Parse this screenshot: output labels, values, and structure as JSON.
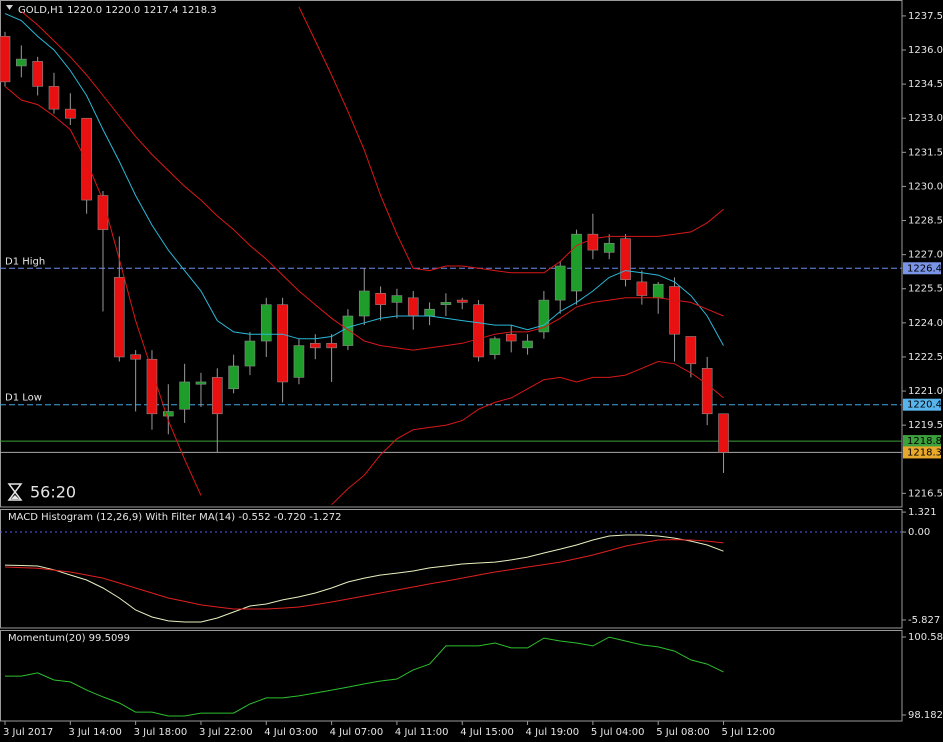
{
  "chart_data": [
    {
      "type": "candlestick",
      "title": "GOLD,H1  1220.0 1220.0 1217.4 1218.3",
      "timer": "56:20",
      "categories": [
        "3 Jul 2017",
        null,
        null,
        null,
        "3 Jul 14:00",
        null,
        null,
        null,
        "3 Jul 18:00",
        null,
        null,
        null,
        "3 Jul 22:00",
        null,
        null,
        null,
        "4 Jul 03:00",
        null,
        null,
        null,
        "4 Jul 07:00",
        null,
        null,
        null,
        "4 Jul 11:00",
        null,
        null,
        null,
        "4 Jul 15:00",
        null,
        null,
        null,
        "4 Jul 19:00",
        null,
        null,
        null,
        "5 Jul 04:00",
        null,
        null,
        null,
        "5 Jul 08:00",
        null,
        null,
        null,
        "5 Jul 12:00"
      ],
      "open": [
        1236.6,
        1235.3,
        1235.5,
        1234.4,
        1233.4,
        1233.0,
        1229.6,
        1226.0,
        1222.6,
        1222.4,
        1219.9,
        1220.2,
        1221.3,
        1221.6,
        1221.1,
        1222.1,
        1223.2,
        1224.8,
        1221.6,
        1223.1,
        1223.1,
        1223.0,
        1224.3,
        1225.3,
        1224.9,
        1225.1,
        1224.3,
        1224.8,
        1225.0,
        1224.8,
        1222.6,
        1223.5,
        1222.9,
        1223.6,
        1225.0,
        1225.4,
        1227.9,
        1227.1,
        1227.7,
        1225.8,
        1225.1,
        1225.6,
        1223.4,
        1222.0,
        1220.0
      ],
      "high": [
        1236.8,
        1236.2,
        1235.7,
        1235.0,
        1234.1,
        1233.0,
        1229.8,
        1227.8,
        1222.8,
        1222.8,
        1221.3,
        1222.2,
        1221.8,
        1222.0,
        1222.6,
        1223.6,
        1225.1,
        1225.1,
        1223.3,
        1223.5,
        1223.5,
        1224.6,
        1226.4,
        1225.6,
        1225.5,
        1225.4,
        1224.9,
        1225.3,
        1225.1,
        1225.0,
        1223.4,
        1223.9,
        1223.5,
        1225.4,
        1226.7,
        1228.1,
        1228.8,
        1227.9,
        1227.9,
        1226.3,
        1225.8,
        1226.0,
        1223.4,
        1222.5,
        1220.0
      ],
      "low": [
        1234.4,
        1234.8,
        1234.0,
        1233.2,
        1232.7,
        1228.8,
        1224.5,
        1222.3,
        1220.1,
        1219.3,
        1219.1,
        1219.6,
        1220.3,
        1218.3,
        1220.9,
        1221.7,
        1222.5,
        1220.5,
        1221.3,
        1222.4,
        1221.4,
        1222.8,
        1223.9,
        1224.1,
        1224.2,
        1223.7,
        1223.9,
        1224.3,
        1224.6,
        1222.3,
        1222.4,
        1222.7,
        1222.6,
        1223.3,
        1224.4,
        1224.8,
        1226.8,
        1226.8,
        1225.6,
        1224.8,
        1224.4,
        1222.3,
        1221.6,
        1219.5,
        1217.4
      ],
      "close": [
        1234.6,
        1235.6,
        1234.4,
        1233.4,
        1233.0,
        1229.4,
        1228.1,
        1222.5,
        1222.4,
        1220.0,
        1220.1,
        1221.4,
        1221.4,
        1220.0,
        1222.1,
        1223.2,
        1224.8,
        1221.4,
        1223.0,
        1222.9,
        1222.9,
        1224.3,
        1225.4,
        1224.8,
        1225.2,
        1224.3,
        1224.6,
        1224.9,
        1224.9,
        1222.5,
        1223.3,
        1223.2,
        1223.2,
        1225.0,
        1226.5,
        1227.9,
        1227.2,
        1227.5,
        1225.9,
        1225.2,
        1225.7,
        1223.5,
        1222.2,
        1220.0,
        1218.3
      ],
      "up_color": "#1f9d2b",
      "down_color": "#e81010",
      "overlays": [
        {
          "color": "#2bb8d8",
          "values": [
            1237.6,
            1237.3,
            1236.6,
            1236.0,
            1235.1,
            1234.0,
            1232.5,
            1231.1,
            1229.6,
            1228.3,
            1227.2,
            1226.3,
            1225.4,
            1224.1,
            1223.6,
            1223.5,
            1223.5,
            1223.5,
            1223.3,
            1223.3,
            1223.4,
            1223.8,
            1224.0,
            1224.2,
            1224.3,
            1224.3,
            1224.3,
            1224.2,
            1224.1,
            1224.0,
            1223.9,
            1223.9,
            1223.7,
            1223.9,
            1224.5,
            1224.9,
            1225.4,
            1226.0,
            1226.3,
            1226.2,
            1226.1,
            1225.8,
            1225.2,
            1224.3,
            1223.0
          ]
        },
        {
          "color": "#d81818",
          "values": [
            null,
            null,
            null,
            null,
            null,
            null,
            null,
            null,
            null,
            null,
            null,
            null,
            null,
            null,
            null,
            null,
            null,
            null,
            1237.9,
            1236.4,
            1234.9,
            1233.3,
            1231.6,
            1229.6,
            1227.9,
            1226.4,
            1226.3,
            1226.5,
            1226.5,
            1226.4,
            1226.3,
            1226.2,
            1226.2,
            1226.2,
            1226.7,
            1227.4,
            1227.7,
            1227.8,
            1227.8,
            1227.8,
            1227.8,
            1227.9,
            1228.0,
            1228.4,
            1229.0
          ]
        },
        {
          "color": "#d81818",
          "values": [
            null,
            1237.7,
            1237.1,
            1236.4,
            1235.7,
            1234.9,
            1234.0,
            1233.1,
            1232.2,
            1231.4,
            1230.7,
            1230.0,
            1229.4,
            1228.7,
            1228.1,
            1227.4,
            1226.8,
            1226.1,
            1225.4,
            1224.8,
            1224.2,
            1223.7,
            1223.2,
            1223.0,
            1222.9,
            1222.8,
            1222.9,
            1223.0,
            1223.1,
            1223.3,
            1223.5,
            1223.6,
            1223.6,
            1223.8,
            1224.2,
            1224.7,
            1224.9,
            1225.0,
            1225.1,
            1225.1,
            1225.1,
            1225.0,
            1224.9,
            1224.6,
            1224.3
          ]
        },
        {
          "color": "#d81818",
          "values": [
            1234.4,
            1233.8,
            1233.6,
            1233.1,
            1232.5,
            1231.1,
            1229.4,
            1226.8,
            1224.1,
            1221.9,
            1219.7,
            1218.0,
            1216.4,
            null,
            null,
            null,
            null,
            null,
            null,
            null,
            1216.0,
            1216.7,
            1217.3,
            1218.2,
            1218.9,
            1219.3,
            1219.4,
            1219.5,
            1219.7,
            1220.2,
            1220.5,
            1220.7,
            1221.1,
            1221.5,
            1221.6,
            1221.4,
            1221.6,
            1221.6,
            1221.7,
            1222.0,
            1222.3,
            1222.2,
            1221.8,
            1221.3,
            1220.7
          ]
        }
      ],
      "levels": [
        {
          "label": "D1 High",
          "value": 1226.4,
          "color": "#6d8df0",
          "box_color": "#7a95e8",
          "style": "dashed"
        },
        {
          "label": "D1 Low",
          "value": 1220.4,
          "color": "#3fa6e0",
          "box_color": "#58b4ec",
          "style": "dashed"
        },
        {
          "value": 1218.8,
          "color": "#3ca03c",
          "box_color": "#3ca03c",
          "style": "solid"
        },
        {
          "value": 1218.3,
          "color": "#a8a8a8",
          "box_color": "#e8a82c",
          "style": "solid"
        }
      ],
      "ylim": [
        1215.9,
        1238.2
      ],
      "yticks": [
        {
          "value": 1237.5,
          "label": "1237.5"
        },
        {
          "value": 1236,
          "label": "1236.0"
        },
        {
          "value": 1234.5,
          "label": "1234.5"
        },
        {
          "value": 1233,
          "label": "1233.0"
        },
        {
          "value": 1231.5,
          "label": "1231.5"
        },
        {
          "value": 1230,
          "label": "1230.0"
        },
        {
          "value": 1228.5,
          "label": "1228.5"
        },
        {
          "value": 1227,
          "label": "1227.0"
        },
        {
          "value": 1225.5,
          "label": "1225.5"
        },
        {
          "value": 1224,
          "label": "1224.0"
        },
        {
          "value": 1222.5,
          "label": "1222.5"
        },
        {
          "value": 1221,
          "label": "1221.0"
        },
        {
          "value": 1219.5,
          "label": "1219.5"
        },
        {
          "value": 1216.5,
          "label": "1216.5"
        }
      ]
    },
    {
      "type": "line",
      "title": "MACD Histogram (12,26,9) With Filter MA(14) -0.552 -0.720 -1.272",
      "series": [
        {
          "color": "#e8f0c0",
          "values": [
            -2.19,
            -2.22,
            -2.25,
            -2.5,
            -2.85,
            -3.18,
            -3.71,
            -4.37,
            -5.17,
            -5.63,
            -5.89,
            -5.96,
            -5.96,
            -5.7,
            -5.3,
            -4.9,
            -4.77,
            -4.5,
            -4.3,
            -4.04,
            -3.71,
            -3.31,
            -3.05,
            -2.85,
            -2.72,
            -2.58,
            -2.38,
            -2.25,
            -2.12,
            -2.05,
            -1.99,
            -1.85,
            -1.66,
            -1.39,
            -1.13,
            -0.86,
            -0.53,
            -0.26,
            -0.2,
            -0.2,
            -0.26,
            -0.4,
            -0.6,
            -0.86,
            -1.27
          ]
        },
        {
          "color": "#e02020",
          "values": [
            -2.32,
            -2.36,
            -2.4,
            -2.52,
            -2.65,
            -2.85,
            -3.05,
            -3.38,
            -3.71,
            -4.04,
            -4.37,
            -4.6,
            -4.83,
            -4.97,
            -5.1,
            -5.1,
            -5.1,
            -5.04,
            -4.97,
            -4.81,
            -4.64,
            -4.44,
            -4.24,
            -4.04,
            -3.84,
            -3.64,
            -3.44,
            -3.25,
            -3.05,
            -2.85,
            -2.65,
            -2.49,
            -2.32,
            -2.16,
            -1.99,
            -1.76,
            -1.52,
            -1.23,
            -0.93,
            -0.73,
            -0.53,
            -0.5,
            -0.53,
            -0.6,
            -0.72
          ]
        }
      ],
      "levels": [
        {
          "value": 0,
          "color": "#5a5af0",
          "style": "dotted"
        }
      ],
      "ylim": [
        -6.36,
        1.46
      ],
      "yticks": [
        1.321,
        {
          "value": 0,
          "label": "0.00"
        },
        -5.827
      ]
    },
    {
      "type": "line",
      "title": "Momentum(20) 99.5099",
      "color": "#2ec02e",
      "values": [
        99.38,
        99.38,
        99.48,
        99.26,
        99.2,
        98.95,
        98.74,
        98.55,
        98.27,
        98.27,
        98.15,
        98.15,
        98.24,
        98.24,
        98.24,
        98.52,
        98.71,
        98.71,
        98.77,
        98.86,
        98.95,
        99.04,
        99.14,
        99.23,
        99.29,
        99.57,
        99.75,
        100.31,
        100.31,
        100.31,
        100.4,
        100.25,
        100.25,
        100.55,
        100.46,
        100.4,
        100.31,
        100.58,
        100.46,
        100.34,
        100.28,
        100.15,
        99.88,
        99.75,
        99.51
      ],
      "ylim": [
        97.997,
        100.769
      ],
      "yticks": [
        100.584,
        98.1823
      ]
    }
  ]
}
